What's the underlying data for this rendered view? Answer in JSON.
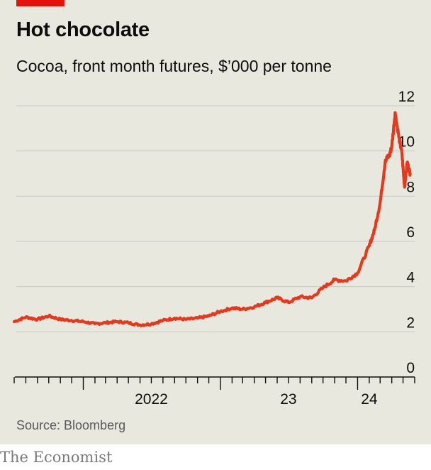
{
  "title": "Hot chocolate",
  "subtitle": "Cocoa, front month futures, $’000 per tonne",
  "source": "Source: Bloomberg",
  "brand": "The Economist",
  "colors": {
    "line": "#e3391f",
    "accent": "#e3120b",
    "background": "#e9e8de",
    "grid": "#c8c8c8"
  },
  "chart_data": {
    "type": "line",
    "title": "Hot chocolate",
    "subtitle": "Cocoa, front month futures, $’000 per tonne",
    "xlabel": "",
    "ylabel": "",
    "ylim": [
      0,
      12
    ],
    "yticks": [
      "0",
      "2",
      "4",
      "6",
      "8",
      "10",
      "12"
    ],
    "xlim": [
      "2021-07",
      "2024-06"
    ],
    "xtick_labels": [
      {
        "label": "2022",
        "x": "2022-07"
      },
      {
        "label": "23",
        "x": "2023-07"
      },
      {
        "label": "24",
        "x": "2024-02"
      }
    ],
    "grid": true,
    "series": [
      {
        "name": "",
        "x": [
          "2021-07",
          "2021-08",
          "2021-09",
          "2021-10",
          "2021-11",
          "2021-12",
          "2022-01",
          "2022-02",
          "2022-03",
          "2022-04",
          "2022-05",
          "2022-06",
          "2022-07",
          "2022-08",
          "2022-09",
          "2022-10",
          "2022-11",
          "2022-12",
          "2023-01",
          "2023-02",
          "2023-03",
          "2023-04",
          "2023-05",
          "2023-06",
          "2023-07",
          "2023-08",
          "2023-09",
          "2023-10",
          "2023-11",
          "2023-12",
          "2024-01",
          "2024-02",
          "2024-02-15",
          "2024-03",
          "2024-03-15",
          "2024-03-26",
          "2024-04",
          "2024-04-10",
          "2024-04-20",
          "2024-04-28",
          "2024-05-05",
          "2024-05-12",
          "2024-05-20"
        ],
        "values": [
          2.45,
          2.65,
          2.55,
          2.7,
          2.55,
          2.5,
          2.45,
          2.35,
          2.4,
          2.45,
          2.4,
          2.3,
          2.35,
          2.5,
          2.6,
          2.55,
          2.6,
          2.7,
          2.9,
          3.05,
          3.0,
          3.1,
          3.3,
          3.5,
          3.3,
          3.55,
          3.5,
          3.95,
          4.3,
          4.25,
          4.6,
          5.8,
          6.5,
          7.7,
          9.6,
          9.8,
          10.2,
          11.7,
          10.6,
          9.9,
          8.4,
          9.5,
          9.0
        ]
      }
    ]
  }
}
